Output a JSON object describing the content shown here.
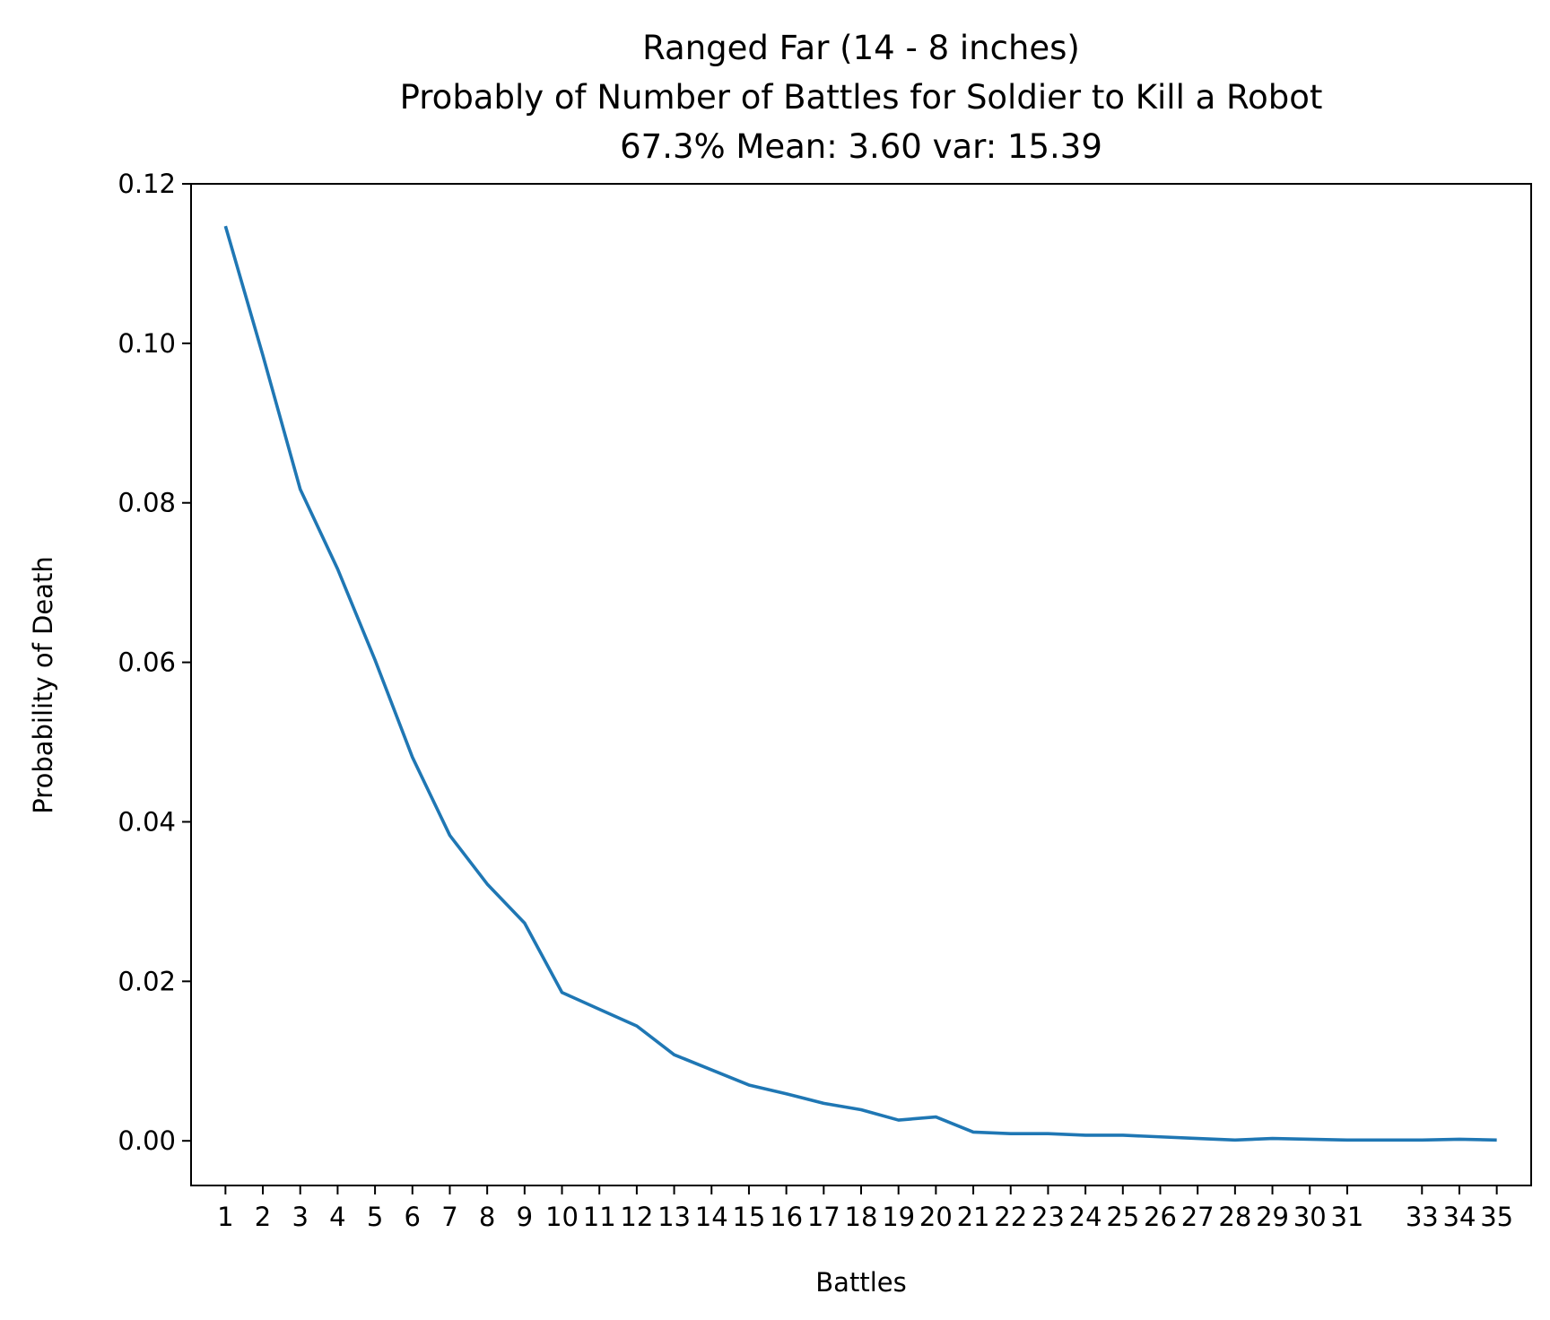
{
  "chart_data": {
    "type": "line",
    "title_lines": [
      "Ranged Far (14 - 8 inches)",
      "Probably of Number of Battles for Soldier to Kill a Robot",
      "67.3% Mean: 3.60 var: 15.39"
    ],
    "xlabel": "Battles",
    "ylabel": "Probability of Death",
    "x_ticks": [
      1,
      2,
      3,
      4,
      5,
      6,
      7,
      8,
      9,
      10,
      11,
      12,
      13,
      14,
      15,
      16,
      17,
      18,
      19,
      20,
      21,
      22,
      23,
      24,
      25,
      26,
      27,
      28,
      29,
      30,
      31,
      33,
      34,
      35
    ],
    "x_tick_labels": [
      "1",
      "2",
      "3",
      "4",
      "5",
      "6",
      "7",
      "8",
      "9",
      "10",
      "11",
      "12",
      "13",
      "14",
      "15",
      "16",
      "17",
      "18",
      "19",
      "20",
      "21",
      "22",
      "23",
      "24",
      "25",
      "26",
      "27",
      "28",
      "29",
      "30",
      "31",
      "33",
      "34",
      "35"
    ],
    "y_ticks": [
      0.0,
      0.02,
      0.04,
      0.06,
      0.08,
      0.1,
      0.12
    ],
    "y_tick_labels": [
      "0.00",
      "0.02",
      "0.04",
      "0.06",
      "0.08",
      "0.10",
      "0.12"
    ],
    "xlim": [
      0.08,
      35.92
    ],
    "ylim": [
      -0.0056,
      0.12
    ],
    "grid": false,
    "series": [
      {
        "color": "#1f77b4",
        "points": [
          [
            1,
            0.1147
          ],
          [
            2,
            0.0985
          ],
          [
            3,
            0.0817
          ],
          [
            4,
            0.0717
          ],
          [
            5,
            0.0603
          ],
          [
            6,
            0.0481
          ],
          [
            7,
            0.0383
          ],
          [
            8,
            0.0322
          ],
          [
            9,
            0.0273
          ],
          [
            10,
            0.0186
          ],
          [
            11,
            0.0165
          ],
          [
            12,
            0.0144
          ],
          [
            13,
            0.0108
          ],
          [
            14,
            0.0089
          ],
          [
            15,
            0.007
          ],
          [
            16,
            0.0059
          ],
          [
            17,
            0.0047
          ],
          [
            18,
            0.0039
          ],
          [
            19,
            0.0026
          ],
          [
            20,
            0.003
          ],
          [
            21,
            0.0011
          ],
          [
            22,
            0.0009
          ],
          [
            23,
            0.0009
          ],
          [
            24,
            0.0007
          ],
          [
            25,
            0.0007
          ],
          [
            26,
            0.0005
          ],
          [
            27,
            0.0003
          ],
          [
            28,
            0.0001
          ],
          [
            29,
            0.0003
          ],
          [
            30,
            0.0002
          ],
          [
            31,
            0.0001
          ],
          [
            33,
            0.0001
          ],
          [
            34,
            0.0002
          ],
          [
            35,
            0.0001
          ]
        ]
      }
    ]
  }
}
